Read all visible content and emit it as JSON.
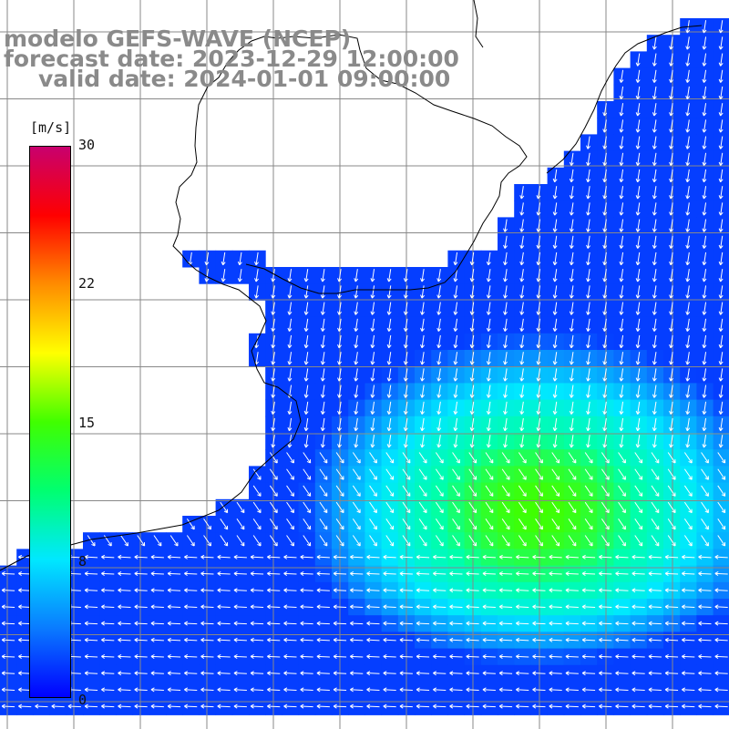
{
  "header": {
    "line1": "modelo GEFS-WAVE (NCEP)",
    "line2": "forecast date: 2023-12-29 12:00:00",
    "line3": "valid date: 2024-01-01 09:00:00"
  },
  "legend": {
    "unit": "[m/s]",
    "ticks": [
      "30",
      "22",
      "15",
      "8",
      "0"
    ],
    "colors": [
      "#0000ff",
      "#0a7bff",
      "#00e8ff",
      "#00ff70",
      "#40ff00",
      "#ffff00",
      "#ff8c00",
      "#ff0000",
      "#c8006e"
    ]
  },
  "map": {
    "land_color": "#ffffff",
    "grid_color": "#808080",
    "arrow_color": "#ffffff",
    "coast_color": "#000000"
  }
}
